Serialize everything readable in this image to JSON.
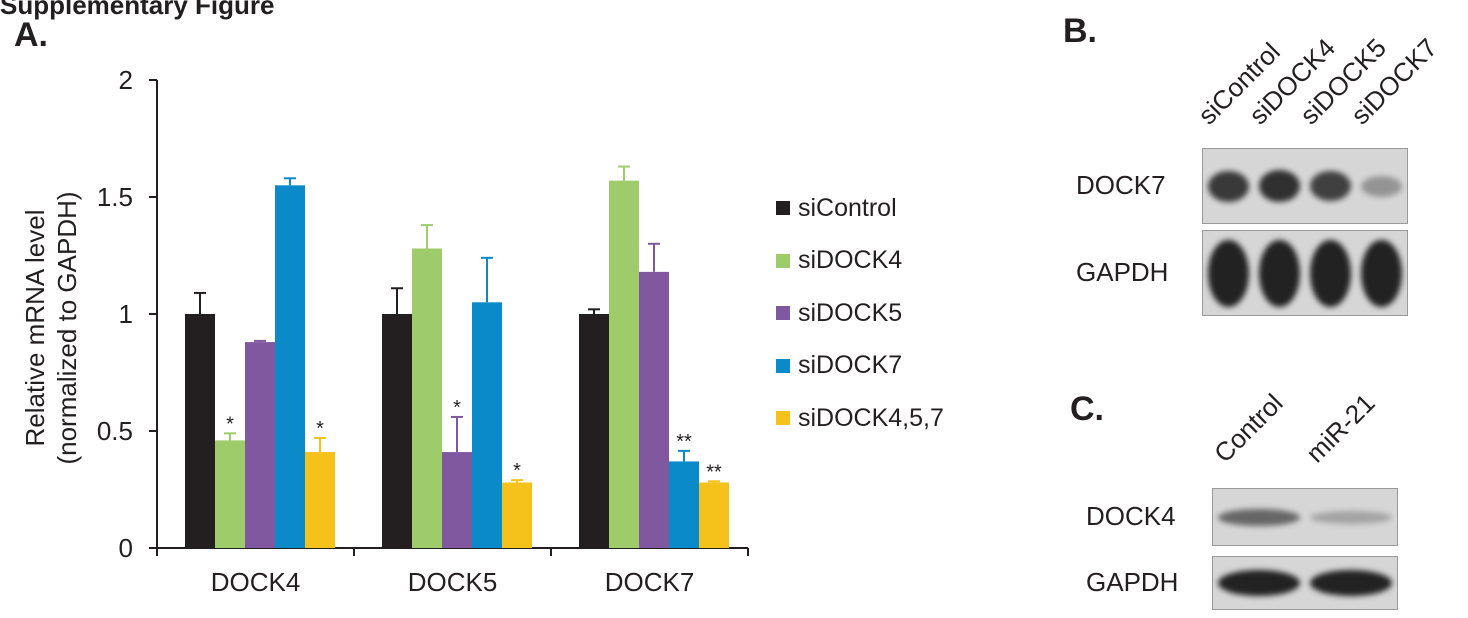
{
  "header_text": "Supplementary Figure",
  "panels": {
    "a": "A.",
    "b": "B.",
    "c": "C."
  },
  "chart_data": {
    "type": "bar",
    "ylabel_line1": "Relative mRNA level",
    "ylabel_line2": "(normalized to GAPDH)",
    "ylim": [
      0,
      2
    ],
    "yticks": [
      "0",
      "0.5",
      "1",
      "1.5",
      "2"
    ],
    "categories": [
      "DOCK4",
      "DOCK5",
      "DOCK7"
    ],
    "series": [
      {
        "name": "siControl",
        "color": "#231f20",
        "values": [
          1.0,
          1.0,
          1.0
        ],
        "errors": [
          0.09,
          0.11,
          0.02
        ],
        "annotations": [
          "",
          "",
          ""
        ]
      },
      {
        "name": "siDOCK4",
        "color": "#9fcc6b",
        "values": [
          0.46,
          1.28,
          1.57
        ],
        "errors": [
          0.03,
          0.1,
          0.06
        ],
        "annotations": [
          "*",
          "",
          ""
        ]
      },
      {
        "name": "siDOCK5",
        "color": "#8058a0",
        "values": [
          0.88,
          0.41,
          1.18
        ],
        "errors": [
          0.005,
          0.15,
          0.12
        ],
        "annotations": [
          "",
          "*",
          ""
        ]
      },
      {
        "name": "siDOCK7",
        "color": "#0b8ac9",
        "values": [
          1.55,
          1.05,
          0.37
        ],
        "errors": [
          0.03,
          0.19,
          0.045
        ],
        "annotations": [
          "",
          "",
          "**"
        ]
      },
      {
        "name": "siDOCK4,5,7",
        "color": "#f5c21b",
        "values": [
          0.41,
          0.28,
          0.28
        ],
        "errors": [
          0.06,
          0.01,
          0.005
        ],
        "annotations": [
          "*",
          "*",
          "**"
        ]
      }
    ],
    "legend_position": "right",
    "grid": false
  },
  "blot_b": {
    "lanes": [
      "siControl",
      "siDOCK4",
      "siDOCK5",
      "siDOCK7"
    ],
    "rows": [
      {
        "label": "DOCK7",
        "band_intensity": [
          0.85,
          0.9,
          0.8,
          0.25
        ]
      },
      {
        "label": "GAPDH",
        "band_intensity": [
          1.0,
          1.0,
          1.0,
          1.0
        ]
      }
    ]
  },
  "blot_c": {
    "lanes": [
      "Control",
      "miR-21"
    ],
    "rows": [
      {
        "label": "DOCK4",
        "band_intensity": [
          0.55,
          0.15
        ]
      },
      {
        "label": "GAPDH",
        "band_intensity": [
          1.0,
          1.0
        ]
      }
    ]
  }
}
